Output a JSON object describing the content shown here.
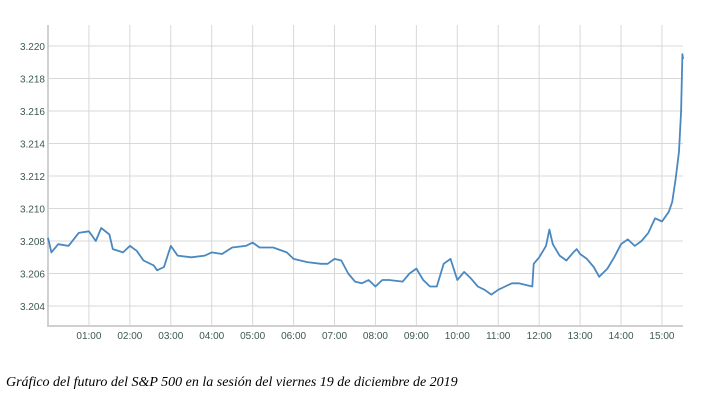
{
  "chart_data": {
    "type": "line",
    "title": "",
    "xlabel": "",
    "ylabel": "",
    "grid": true,
    "line_color": "#4a88c0",
    "xlim": [
      "00:00",
      "15:31"
    ],
    "ylim": [
      3.2027,
      3.2215
    ],
    "y_ticks": [
      "3.204",
      "3.206",
      "3.208",
      "3.210",
      "3.212",
      "3.214",
      "3.216",
      "3.218",
      "3.220"
    ],
    "x_ticks": [
      "01:00",
      "02:00",
      "03:00",
      "04:00",
      "05:00",
      "06:00",
      "07:00",
      "08:00",
      "09:00",
      "10:00",
      "11:00",
      "12:00",
      "13:00",
      "14:00",
      "15:00"
    ],
    "series": [
      {
        "x": [
          "00:00",
          "00:05",
          "00:15",
          "00:30",
          "00:45",
          "01:00",
          "01:10",
          "01:18",
          "01:30",
          "01:35",
          "01:50",
          "02:00",
          "02:10",
          "02:20",
          "02:35",
          "02:40",
          "02:50",
          "03:00",
          "03:10",
          "03:30",
          "03:50",
          "04:00",
          "04:15",
          "04:30",
          "04:50",
          "05:00",
          "05:10",
          "05:30",
          "05:50",
          "06:00",
          "06:20",
          "06:40",
          "06:50",
          "07:00",
          "07:10",
          "07:20",
          "07:30",
          "07:40",
          "07:50",
          "08:00",
          "08:10",
          "08:20",
          "08:40",
          "08:50",
          "09:00",
          "09:10",
          "09:20",
          "09:30",
          "09:40",
          "09:50",
          "10:00",
          "10:10",
          "10:20",
          "10:30",
          "10:40",
          "10:50",
          "11:00",
          "11:10",
          "11:20",
          "11:30",
          "11:40",
          "11:50",
          "11:52",
          "12:00",
          "12:10",
          "12:15",
          "12:20",
          "12:30",
          "12:40",
          "12:50",
          "12:55",
          "13:00",
          "13:10",
          "13:20",
          "13:28",
          "13:40",
          "13:50",
          "14:00",
          "14:10",
          "14:20",
          "14:30",
          "14:40",
          "14:50",
          "15:00",
          "15:10",
          "15:15",
          "15:20",
          "15:25",
          "15:28",
          "15:30",
          "15:31"
        ],
        "values": [
          3.2082,
          3.2073,
          3.2078,
          3.2077,
          3.2085,
          3.2086,
          3.208,
          3.2088,
          3.2084,
          3.2075,
          3.2073,
          3.2077,
          3.2074,
          3.2068,
          3.2065,
          3.2062,
          3.2064,
          3.2077,
          3.2071,
          3.207,
          3.2071,
          3.2073,
          3.2072,
          3.2076,
          3.2077,
          3.2079,
          3.2076,
          3.2076,
          3.2073,
          3.2069,
          3.2067,
          3.2066,
          3.2066,
          3.2069,
          3.2068,
          3.206,
          3.2055,
          3.2054,
          3.2056,
          3.2052,
          3.2056,
          3.2056,
          3.2055,
          3.206,
          3.2063,
          3.2056,
          3.2052,
          3.2052,
          3.2066,
          3.2069,
          3.2056,
          3.2061,
          3.2057,
          3.2052,
          3.205,
          3.2047,
          3.205,
          3.2052,
          3.2054,
          3.2054,
          3.2053,
          3.2052,
          3.2066,
          3.207,
          3.2077,
          3.2087,
          3.2078,
          3.2071,
          3.2068,
          3.2073,
          3.2075,
          3.2072,
          3.2069,
          3.2064,
          3.2058,
          3.2063,
          3.207,
          3.2078,
          3.2081,
          3.2077,
          3.208,
          3.2085,
          3.2094,
          3.2092,
          3.2098,
          3.2104,
          3.2118,
          3.2135,
          3.216,
          3.2195,
          3.2192
        ]
      }
    ]
  },
  "caption": "Gráfico del futuro del S&P 500 en la sesión del viernes 19 de diciembre de 2019"
}
